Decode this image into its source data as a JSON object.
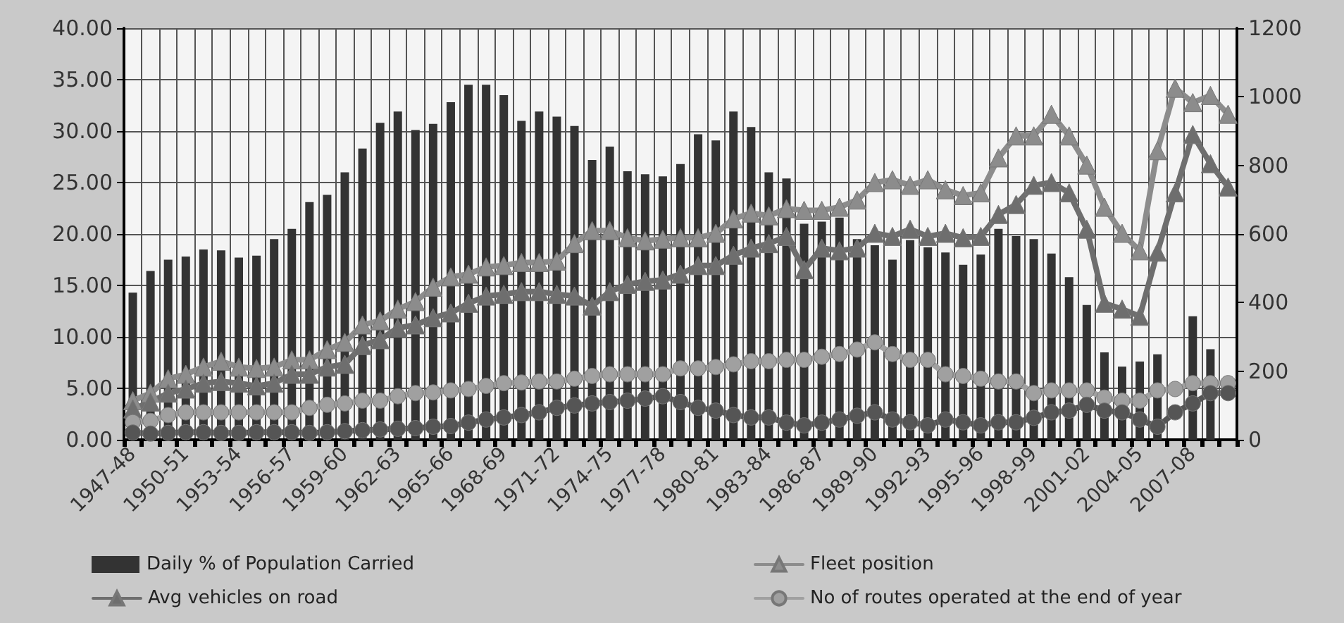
{
  "chart_data": {
    "type": "bar",
    "categories": [
      "1947-48",
      null,
      null,
      "1950-51",
      null,
      null,
      "1953-54",
      null,
      null,
      "1956-57",
      null,
      null,
      "1959-60",
      null,
      null,
      "1962-63",
      null,
      null,
      "1965-66",
      null,
      null,
      "1968-69",
      null,
      null,
      "1971-72",
      null,
      null,
      "1974-75",
      null,
      null,
      "1977-78",
      null,
      null,
      "1980-81",
      null,
      null,
      "1983-84",
      null,
      null,
      "1986-87",
      null,
      null,
      "1989-90",
      null,
      null,
      "1992-93",
      null,
      null,
      "1995-96",
      null,
      null,
      "1998-99",
      null,
      null,
      "2001-02",
      null,
      null,
      "2004-05",
      null,
      null,
      "2007-08",
      null,
      null
    ],
    "series": [
      {
        "name": "Daily % of Population Carried",
        "color": "#333333",
        "values": [
          14.3,
          16.4,
          17.5,
          17.8,
          18.5,
          18.4,
          17.7,
          17.9,
          19.5,
          20.5,
          23.1,
          23.8,
          26.0,
          28.3,
          30.8,
          31.9,
          30.1,
          30.7,
          32.8,
          34.5,
          34.5,
          33.5,
          31.0,
          31.9,
          31.4,
          30.5,
          27.2,
          28.5,
          26.1,
          25.8,
          25.6,
          26.8,
          29.7,
          29.1,
          31.9,
          30.4,
          26.0,
          25.4,
          21.0,
          21.2,
          21.6,
          19.5,
          18.9,
          17.5,
          19.4,
          18.7,
          18.2,
          17.0,
          18.0,
          20.5,
          19.8,
          19.5,
          18.1,
          15.8,
          13.1,
          8.5,
          7.1,
          7.6,
          8.3,
          null,
          12.0,
          8.8,
          null
        ]
      },
      {
        "name": "Fleet position",
        "type": "line",
        "axis": "y2",
        "marker": "triangle",
        "color": "#8c8c8c",
        "values": [
          114,
          136,
          178,
          191,
          212,
          229,
          212,
          208,
          212,
          233,
          233,
          263,
          284,
          335,
          347,
          381,
          403,
          445,
          475,
          483,
          504,
          508,
          517,
          517,
          521,
          572,
          610,
          610,
          589,
          580,
          585,
          589,
          589,
          602,
          644,
          661,
          653,
          674,
          669,
          669,
          678,
          699,
          750,
          758,
          742,
          758,
          729,
          712,
          720,
          822,
          886,
          886,
          949,
          886,
          801,
          678,
          602,
          551,
          843,
          1025,
          983,
          1004,
          949
        ]
      },
      {
        "name": "Avg vehicles on road",
        "type": "line",
        "axis": "y2",
        "marker": "triangle",
        "color": "#6e6e6e",
        "values": [
          90,
          110,
          136,
          148,
          165,
          170,
          165,
          157,
          165,
          191,
          191,
          212,
          220,
          275,
          292,
          326,
          335,
          356,
          370,
          398,
          419,
          424,
          432,
          432,
          424,
          419,
          390,
          432,
          453,
          462,
          466,
          483,
          508,
          508,
          538,
          559,
          572,
          593,
          496,
          559,
          551,
          559,
          602,
          593,
          614,
          593,
          602,
          589,
          593,
          657,
          686,
          742,
          750,
          720,
          614,
          398,
          381,
          360,
          547,
          720,
          890,
          805,
          737
        ]
      },
      {
        "name": "No of routes operated at the end of year",
        "type": "line",
        "axis": "y2",
        "marker": "circle",
        "color": "#a0a0a0",
        "values": [
          51,
          55,
          72,
          80,
          80,
          80,
          80,
          80,
          80,
          80,
          93,
          102,
          106,
          114,
          114,
          127,
          136,
          138,
          144,
          148,
          157,
          165,
          167,
          170,
          170,
          178,
          186,
          191,
          191,
          191,
          191,
          208,
          208,
          212,
          220,
          229,
          229,
          233,
          233,
          242,
          250,
          263,
          284,
          250,
          233,
          233,
          191,
          186,
          178,
          170,
          170,
          136,
          144,
          144,
          144,
          123,
          114,
          114,
          144,
          148,
          165,
          165,
          165
        ]
      },
      {
        "type": "line",
        "axis": "y2",
        "marker": "circle",
        "color": "#555555",
        "values": [
          21,
          18,
          20,
          22,
          22,
          20,
          20,
          22,
          22,
          22,
          20,
          22,
          25,
          28,
          30,
          32,
          34,
          38,
          40,
          50,
          59,
          65,
          72,
          80,
          93,
          100,
          106,
          110,
          114,
          120,
          127,
          110,
          93,
          85,
          72,
          65,
          65,
          50,
          42,
          50,
          59,
          70,
          80,
          59,
          51,
          42,
          59,
          51,
          42,
          51,
          51,
          64,
          80,
          85,
          102,
          85,
          80,
          59,
          38,
          80,
          106,
          136,
          136
        ]
      }
    ],
    "ylim": [
      0,
      40
    ],
    "yticks": [
      {
        "value": 0,
        "label": "0.00"
      },
      {
        "value": 5,
        "label": "5.00"
      },
      {
        "value": 10,
        "label": "10.00"
      },
      {
        "value": 15,
        "label": "15.00"
      },
      {
        "value": 20,
        "label": "20.00"
      },
      {
        "value": 25,
        "label": "25.00"
      },
      {
        "value": 30,
        "label": "30.00"
      },
      {
        "value": 35,
        "label": "35.00"
      },
      {
        "value": 40,
        "label": "40.00"
      }
    ],
    "y2lim": [
      0,
      1200
    ],
    "y2ticks": [
      0,
      200,
      400,
      600,
      800,
      1000,
      1200
    ],
    "grid": true,
    "legend": "bottom",
    "line_style": "solid"
  }
}
